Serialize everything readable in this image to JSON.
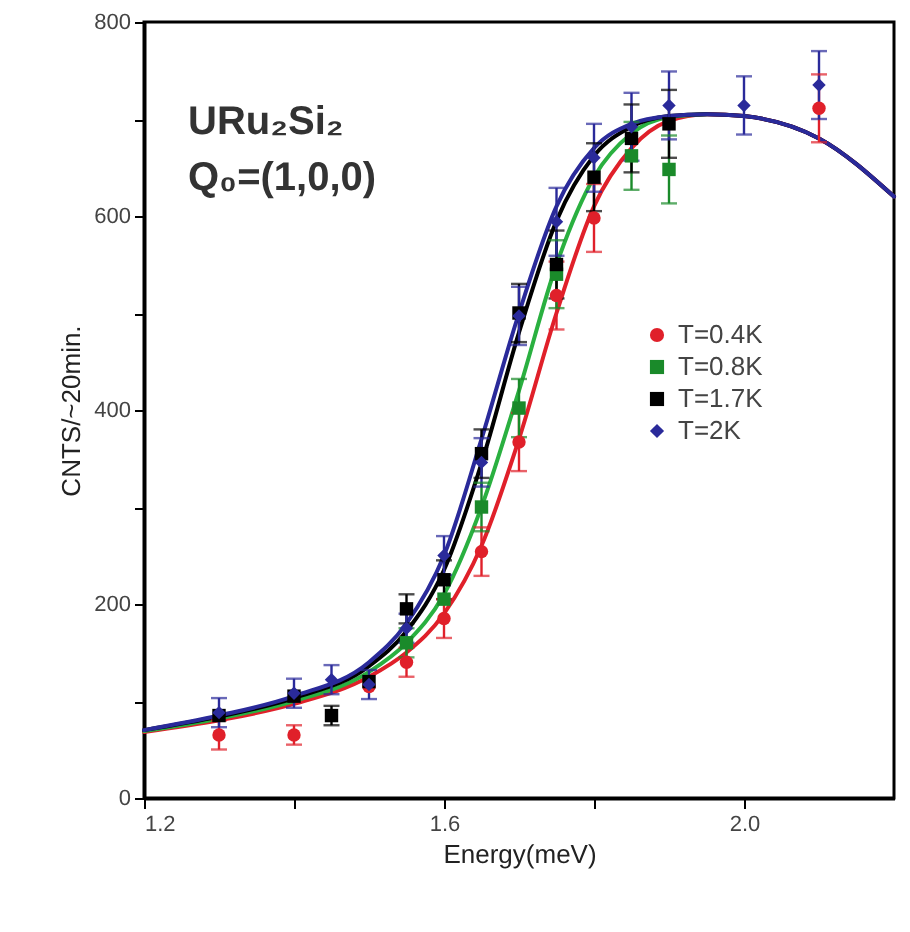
{
  "chart_data": {
    "type": "scatter",
    "xlabel": "Energy(meV)",
    "ylabel": "CNTS/~20min.",
    "annotations": [
      "URu₂Si₂",
      "Q₀=(1,0,0)"
    ],
    "xlim": [
      1.2,
      2.2
    ],
    "xticks": [
      {
        "value": 1.2,
        "label": "1.2"
      },
      {
        "value": 1.4,
        "label": null
      },
      {
        "value": 1.6,
        "label": "1.6"
      },
      {
        "value": 1.8,
        "label": null
      },
      {
        "value": 2,
        "label": "2.0"
      }
    ],
    "ylim": [
      0,
      800
    ],
    "yticks": [
      0,
      {
        "value": 100,
        "label": null
      },
      200,
      {
        "value": 300,
        "label": null
      },
      400,
      {
        "value": 500,
        "label": null
      },
      600,
      {
        "value": 700,
        "label": null
      },
      800
    ],
    "grid": false,
    "legend": "right",
    "series": [
      {
        "name": "T=0.4K",
        "color": "#e0202a",
        "marker": "circle",
        "x": [
          1.3,
          1.4,
          1.5,
          1.55,
          1.6,
          1.65,
          1.7,
          1.75,
          1.8,
          2.1
        ],
        "values": [
          65,
          65,
          115,
          140,
          185,
          254,
          367,
          518,
          598,
          711
        ],
        "errors": [
          15,
          10,
          null,
          15,
          20,
          25,
          30,
          35,
          35,
          35
        ]
      },
      {
        "name": "T=0.8K",
        "color": "#1a8a2a",
        "marker": "square",
        "x": [
          1.55,
          1.6,
          1.65,
          1.7,
          1.75,
          1.85,
          1.9
        ],
        "values": [
          160,
          205,
          300,
          402,
          540,
          662,
          648
        ],
        "errors": [
          15,
          null,
          25,
          30,
          35,
          35,
          35
        ]
      },
      {
        "name": "T=1.7K",
        "color": "#000000",
        "marker": "square",
        "x": [
          1.3,
          1.4,
          1.45,
          1.5,
          1.55,
          1.6,
          1.65,
          1.7,
          1.75,
          1.8,
          1.85,
          1.9
        ],
        "values": [
          85,
          105,
          85,
          120,
          195,
          225,
          355,
          500,
          550,
          640,
          680,
          695
        ],
        "errors": [
          null,
          null,
          10,
          null,
          15,
          20,
          25,
          30,
          35,
          35,
          35,
          35
        ]
      },
      {
        "name": "T=2K",
        "color": "#2a2a9a",
        "marker": "diamond",
        "x": [
          1.3,
          1.4,
          1.45,
          1.5,
          1.55,
          1.6,
          1.65,
          1.7,
          1.75,
          1.8,
          1.85,
          1.9,
          2,
          2.1
        ],
        "values": [
          88,
          108,
          122,
          117,
          175,
          250,
          346,
          497,
          594,
          660,
          692,
          714,
          714,
          735
        ],
        "errors": [
          15,
          15,
          15,
          15,
          15,
          20,
          25,
          30,
          35,
          35,
          35,
          35,
          30,
          35
        ]
      },
      {
        "type": "line",
        "color": "#e0202a",
        "x": [
          1.2,
          1.3,
          1.4,
          1.5,
          1.55,
          1.6,
          1.65,
          1.7,
          1.75,
          1.8,
          1.85,
          1.9,
          1.95,
          2,
          2.1,
          2.2
        ],
        "values": [
          68,
          80,
          97,
          125,
          150,
          190,
          260,
          370,
          500,
          610,
          670,
          698,
          705,
          703,
          680,
          620
        ]
      },
      {
        "type": "line",
        "color": "#2ab040",
        "x": [
          1.2,
          1.3,
          1.4,
          1.5,
          1.55,
          1.6,
          1.65,
          1.7,
          1.75,
          1.8,
          1.85,
          1.9,
          1.95
        ],
        "values": [
          69,
          82,
          100,
          130,
          160,
          210,
          300,
          420,
          550,
          640,
          685,
          702,
          705
        ]
      },
      {
        "type": "line",
        "color": "#000000",
        "x": [
          1.2,
          1.3,
          1.4,
          1.5,
          1.55,
          1.6,
          1.65,
          1.7,
          1.75,
          1.8,
          1.85,
          1.9,
          1.95,
          2,
          2.1,
          2.2
        ],
        "values": [
          70,
          84,
          103,
          136,
          172,
          235,
          345,
          480,
          595,
          662,
          692,
          703,
          705,
          703,
          680,
          620
        ]
      },
      {
        "type": "line",
        "color": "#2a2a9a",
        "x": [
          1.2,
          1.3,
          1.4,
          1.5,
          1.55,
          1.6,
          1.65,
          1.7,
          1.75,
          1.8,
          1.85,
          1.9,
          1.95,
          2,
          2.1,
          2.2
        ],
        "values": [
          70,
          85,
          105,
          140,
          180,
          250,
          370,
          500,
          610,
          670,
          695,
          703,
          705,
          703,
          680,
          620
        ]
      }
    ]
  }
}
